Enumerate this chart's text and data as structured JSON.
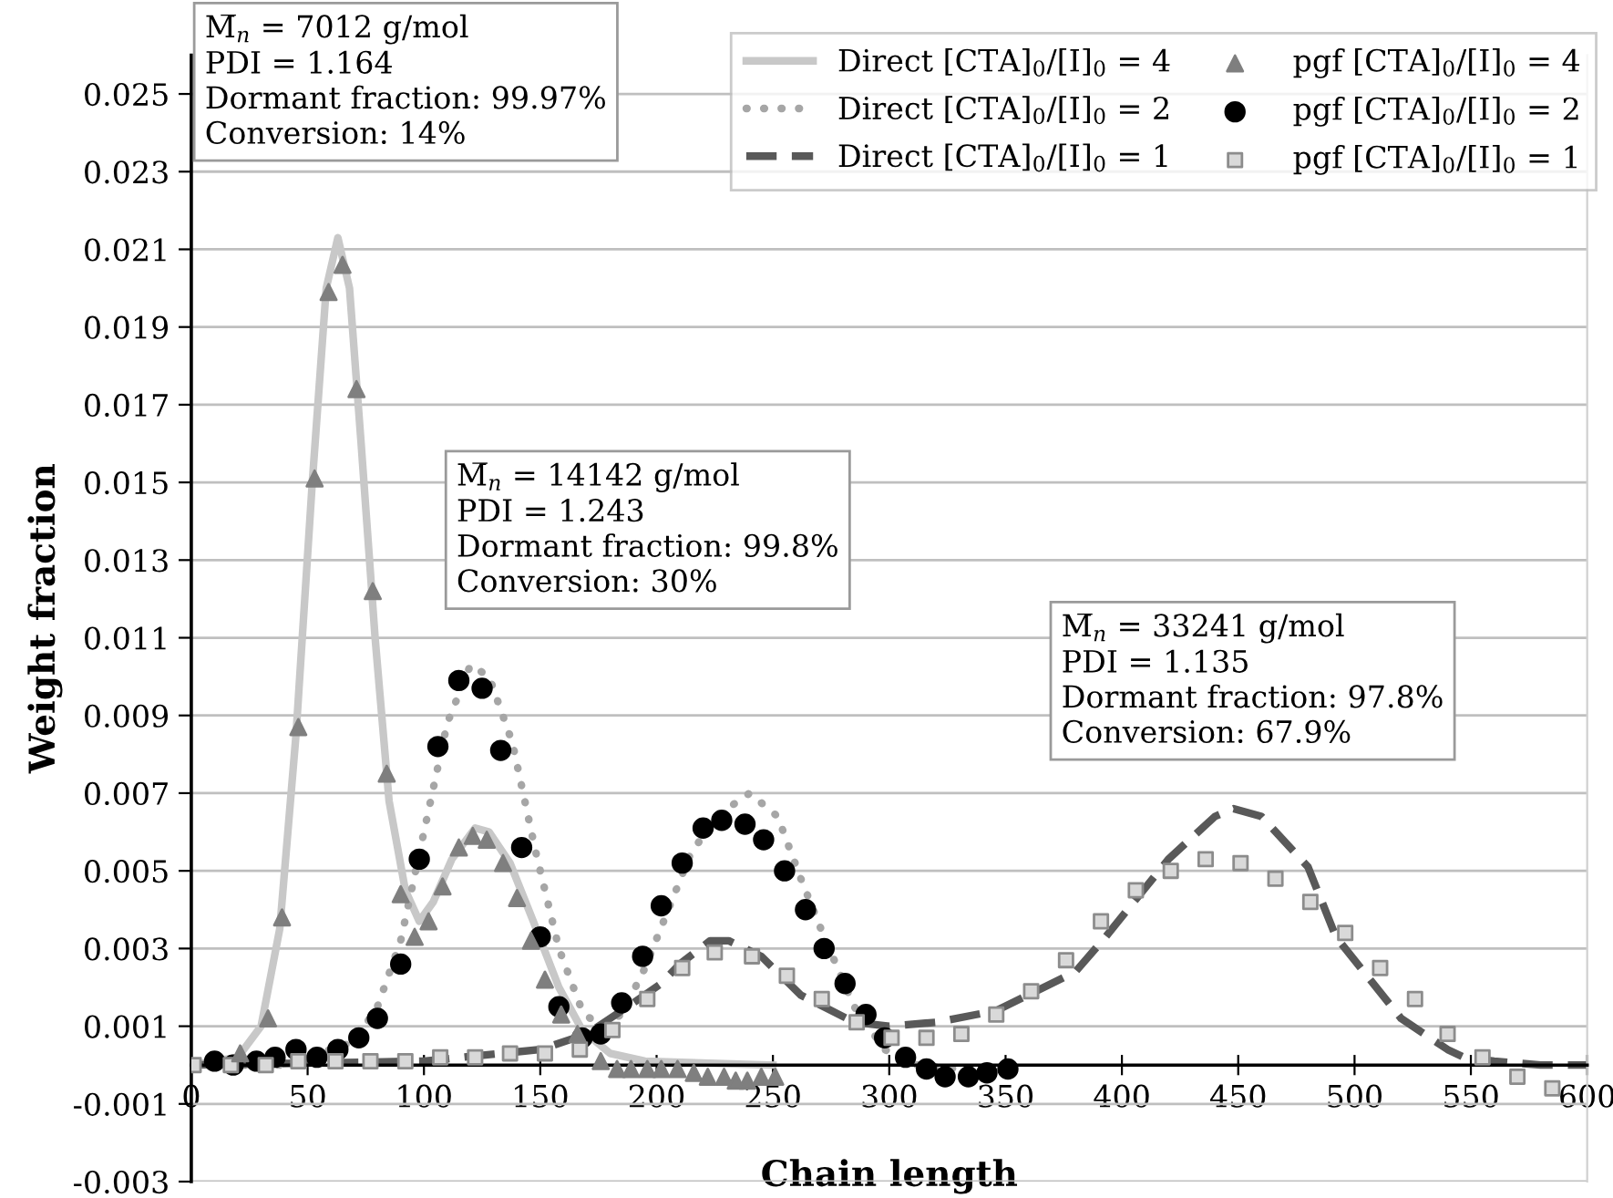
{
  "chart_data": {
    "type": "line",
    "xlabel": "Chain length",
    "ylabel": "Weight fraction",
    "xlim": [
      0,
      600
    ],
    "xticks": [
      0,
      50,
      100,
      150,
      200,
      250,
      300,
      350,
      400,
      450,
      500,
      550,
      600
    ],
    "ylim": [
      -0.003,
      0.026
    ],
    "yticks": [
      -0.003,
      -0.001,
      0.001,
      0.003,
      0.005,
      0.007,
      0.009,
      0.011,
      0.013,
      0.015,
      0.017,
      0.019,
      0.021,
      0.023,
      0.025
    ],
    "grid": "y",
    "legend": "top right",
    "annotations": [
      "M̅$_{n}$ = 7012 g/mol\nPDI = 1.164\nDormant fraction: 99.97%\nConversion: 14%",
      "M̅$_{n}$ = 14142 g/mol\nPDI = 1.243\nDormant fraction: 99.8%\nConversion: 30%",
      "M̅$_{n}$ = 33241 g/mol\nPDI = 1.135\nDormant fraction: 97.8%\nConversion: 67.9%"
    ],
    "series": [
      {
        "name": "Direct [CTA]$_{0}$/[I]$_{0}$ = 4",
        "line_style": "solid",
        "color": "#c8c8c8",
        "x": [
          0,
          20,
          30,
          38,
          45,
          52,
          58,
          63,
          68,
          73,
          79,
          85,
          92,
          98,
          104,
          112,
          122,
          128,
          137,
          147,
          158,
          168,
          180,
          195,
          250
        ],
        "values": [
          0,
          0.0002,
          0.001,
          0.0035,
          0.0085,
          0.015,
          0.02,
          0.0213,
          0.02,
          0.016,
          0.011,
          0.0068,
          0.0045,
          0.0037,
          0.0042,
          0.0053,
          0.0061,
          0.006,
          0.0052,
          0.0037,
          0.002,
          0.0009,
          0.0003,
          0.0001,
          0
        ]
      },
      {
        "name": "Direct [CTA]$_{0}$/[I]$_{0}$ = 2",
        "line_style": "dotted",
        "color": "#a6a6a6",
        "x": [
          0,
          40,
          50,
          70,
          80,
          90,
          100,
          110,
          120,
          128,
          138,
          148,
          158,
          168,
          175,
          185,
          195,
          205,
          215,
          228,
          240,
          252,
          262,
          272,
          285,
          298,
          312,
          330,
          350
        ],
        "values": [
          0,
          0,
          0.0002,
          0.0006,
          0.0015,
          0.0032,
          0.006,
          0.0088,
          0.0103,
          0.01,
          0.0083,
          0.0055,
          0.003,
          0.0014,
          0.001,
          0.0013,
          0.0025,
          0.004,
          0.0055,
          0.0065,
          0.007,
          0.0064,
          0.0048,
          0.0033,
          0.0015,
          0.0004,
          0,
          -0.0001,
          0
        ]
      },
      {
        "name": "Direct [CTA]$_{0}$/[I]$_{0}$ = 1",
        "line_style": "dashed",
        "color": "#595959",
        "x": [
          0,
          100,
          150,
          170,
          190,
          202,
          210,
          223,
          231,
          245,
          262,
          285,
          300,
          320,
          346,
          380,
          393,
          420,
          440,
          448,
          460,
          480,
          492,
          520,
          540,
          547,
          560,
          580,
          600
        ],
        "values": [
          0,
          0.0001,
          0.0004,
          0.0008,
          0.0016,
          0.0021,
          0.0026,
          0.0032,
          0.0032,
          0.0028,
          0.0018,
          0.0011,
          0.001,
          0.0011,
          0.0014,
          0.0024,
          0.0033,
          0.0053,
          0.0064,
          0.0066,
          0.0064,
          0.0051,
          0.0033,
          0.0012,
          0.0004,
          0.0002,
          0.0001,
          0,
          0
        ]
      },
      {
        "name": "pgf [CTA]$_{0}$/[I]$_{0}$ = 4",
        "type": "scatter",
        "marker": "triangle",
        "color": "#7f7f7f",
        "x": [
          21,
          33,
          39,
          46,
          53,
          59,
          65,
          71,
          78,
          84,
          90,
          96,
          102,
          108,
          115,
          121,
          127,
          134,
          140,
          146,
          152,
          159,
          166,
          176,
          183,
          189,
          196,
          202,
          209,
          216,
          222,
          229,
          234,
          239,
          245,
          251
        ],
        "values": [
          0.0003,
          0.0012,
          0.0038,
          0.0087,
          0.0151,
          0.0199,
          0.0206,
          0.0174,
          0.0122,
          0.0075,
          0.0044,
          0.0033,
          0.0037,
          0.0046,
          0.0056,
          0.0059,
          0.0058,
          0.0052,
          0.0043,
          0.0032,
          0.0022,
          0.0013,
          0.0008,
          0.0001,
          -0.0001,
          -0.0001,
          -0.0001,
          -0.0001,
          -0.0001,
          -0.0002,
          -0.0003,
          -0.0003,
          -0.0004,
          -0.0004,
          -0.0003,
          -0.0003
        ]
      },
      {
        "name": "pgf [CTA]$_{0}$/[I]$_{0}$ = 2",
        "type": "scatter",
        "marker": "circle",
        "color": "#000000",
        "x": [
          10,
          18,
          28,
          36,
          45,
          54,
          63,
          72,
          80,
          90,
          98,
          106,
          115,
          125,
          133,
          142,
          150,
          158,
          168,
          176,
          185,
          194,
          202,
          211,
          220,
          228,
          238,
          246,
          255,
          264,
          272,
          281,
          290,
          298,
          307,
          316,
          324,
          334,
          342,
          351
        ],
        "values": [
          0.0001,
          0,
          0.0001,
          0.0002,
          0.0004,
          0.0002,
          0.0004,
          0.0007,
          0.0012,
          0.0026,
          0.0053,
          0.0082,
          0.0099,
          0.0097,
          0.0081,
          0.0056,
          0.0033,
          0.0015,
          0.0007,
          0.0008,
          0.0016,
          0.0028,
          0.0041,
          0.0052,
          0.0061,
          0.0063,
          0.0062,
          0.0058,
          0.005,
          0.004,
          0.003,
          0.0021,
          0.0013,
          0.0007,
          0.0002,
          -0.0001,
          -0.0003,
          -0.0003,
          -0.0002,
          -0.0001
        ]
      },
      {
        "name": "pgf [CTA]$_{0}$/[I]$_{0}$ = 1",
        "type": "scatter",
        "marker": "square",
        "color": "#d9d9d9",
        "x": [
          1,
          17,
          32,
          46,
          62,
          77,
          92,
          107,
          122,
          137,
          152,
          167,
          181,
          196,
          211,
          225,
          241,
          256,
          271,
          286,
          301,
          316,
          331,
          346,
          361,
          376,
          391,
          406,
          421,
          436,
          451,
          466,
          481,
          496,
          511,
          526,
          540,
          555,
          570,
          585
        ],
        "values": [
          0,
          0,
          0,
          0.0001,
          0.0001,
          0.0001,
          0.0001,
          0.0002,
          0.0002,
          0.0003,
          0.0003,
          0.0004,
          0.0009,
          0.0017,
          0.0025,
          0.0029,
          0.0028,
          0.0023,
          0.0017,
          0.0011,
          0.0007,
          0.0007,
          0.0008,
          0.0013,
          0.0019,
          0.0027,
          0.0037,
          0.0045,
          0.005,
          0.0053,
          0.0052,
          0.0048,
          0.0042,
          0.0034,
          0.0025,
          0.0017,
          0.0008,
          0.0002,
          -0.0003,
          -0.0006
        ]
      }
    ]
  }
}
